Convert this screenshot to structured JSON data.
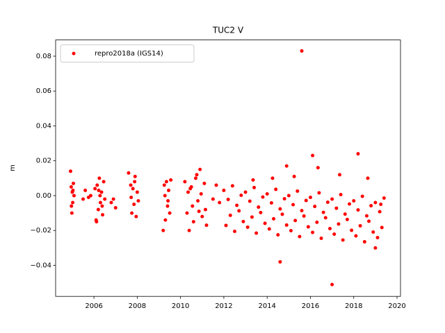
{
  "chart_data": {
    "type": "scatter",
    "title": "TUC2 V",
    "ylabel": "m",
    "legend": "upper left",
    "xlim": [
      2004.23,
      2020.16
    ],
    "ylim": [
      -0.0578,
      0.0893
    ],
    "xticks": [
      2006,
      2008,
      2010,
      2012,
      2014,
      2016,
      2018,
      2020
    ],
    "yticks": [
      {
        "value": -0.04,
        "label": "−0.04"
      },
      {
        "value": -0.02,
        "label": "−0.02"
      },
      {
        "value": 0,
        "label": "0.00"
      },
      0.02,
      0.04,
      0.06,
      0.08
    ],
    "series": [
      {
        "name": "repro2018a (IGS14)",
        "color": "#ff0000",
        "x": [
          2004.92,
          2004.95,
          2004.98,
          2005.0,
          2005.02,
          2005.05,
          2005.08,
          2004.96,
          2005.03,
          2005.5,
          2005.6,
          2005.75,
          2005.85,
          2006.05,
          2006.1,
          2006.15,
          2006.2,
          2006.25,
          2006.3,
          2006.35,
          2006.4,
          2006.45,
          2006.5,
          2006.12,
          2006.28,
          2006.38,
          2006.22,
          2006.8,
          2006.9,
          2007.0,
          2007.6,
          2007.7,
          2007.75,
          2007.8,
          2007.85,
          2007.9,
          2007.95,
          2008.0,
          2008.05,
          2007.72,
          2007.88,
          2009.2,
          2009.25,
          2009.3,
          2009.35,
          2009.4,
          2009.45,
          2009.5,
          2009.55,
          2009.28,
          2009.42,
          2010.2,
          2010.3,
          2010.4,
          2010.5,
          2010.6,
          2010.7,
          2010.8,
          2010.9,
          2011.0,
          2011.1,
          2011.2,
          2010.35,
          2010.55,
          2010.75,
          2010.95,
          2011.15,
          2010.45,
          2010.85,
          2011.5,
          2011.65,
          2011.8,
          2012.0,
          2012.1,
          2012.2,
          2012.3,
          2012.4,
          2012.5,
          2012.6,
          2012.7,
          2012.8,
          2012.9,
          2013.0,
          2013.1,
          2013.2,
          2013.3,
          2013.4,
          2013.5,
          2013.6,
          2013.7,
          2013.8,
          2013.9,
          2014.0,
          2014.1,
          2014.2,
          2014.3,
          2014.4,
          2014.5,
          2014.6,
          2014.7,
          2014.8,
          2014.9,
          2015.0,
          2015.1,
          2015.2,
          2015.3,
          2015.4,
          2015.5,
          2015.6,
          2015.7,
          2015.8,
          2015.9,
          2016.0,
          2016.1,
          2016.2,
          2016.3,
          2016.4,
          2016.5,
          2016.6,
          2016.7,
          2016.8,
          2016.9,
          2017.0,
          2017.1,
          2017.2,
          2017.3,
          2017.4,
          2017.5,
          2017.6,
          2017.7,
          2017.8,
          2017.9,
          2018.0,
          2018.1,
          2018.2,
          2018.3,
          2018.4,
          2018.5,
          2018.6,
          2018.7,
          2018.8,
          2018.9,
          2019.0,
          2019.1,
          2019.2,
          2019.3,
          2019.4,
          2013.35,
          2014.25,
          2015.25,
          2016.35,
          2017.35,
          2018.65,
          2019.25,
          2015.6,
          2014.6,
          2017.0,
          2018.2,
          2016.1,
          2014.9,
          2019.0
        ],
        "values": [
          0.014,
          0.005,
          -0.01,
          0.002,
          -0.004,
          0.007,
          0.0,
          -0.006,
          0.003,
          -0.002,
          0.003,
          -0.001,
          0.0,
          0.004,
          -0.014,
          0.006,
          -0.008,
          0.01,
          -0.004,
          0.002,
          -0.011,
          0.008,
          -0.002,
          -0.015,
          0.0,
          -0.006,
          0.003,
          -0.004,
          -0.002,
          -0.007,
          0.013,
          0.006,
          -0.01,
          0.004,
          -0.005,
          0.011,
          -0.012,
          0.002,
          -0.003,
          -0.001,
          0.008,
          -0.02,
          0.006,
          -0.014,
          0.008,
          -0.006,
          0.003,
          -0.01,
          0.009,
          0.0,
          -0.003,
          0.008,
          -0.01,
          -0.02,
          0.005,
          -0.015,
          0.01,
          -0.003,
          0.015,
          -0.012,
          0.007,
          -0.017,
          0.002,
          -0.006,
          0.012,
          0.001,
          -0.008,
          0.004,
          -0.009,
          -0.002,
          0.006,
          -0.004,
          0.003,
          -0.0171,
          -0.0022,
          -0.0113,
          0.0056,
          -0.0205,
          -0.0056,
          -0.0087,
          0.0002,
          -0.0149,
          0.002,
          -0.0181,
          -0.0032,
          -0.0123,
          0.0046,
          -0.0215,
          -0.0066,
          -0.0097,
          -0.0008,
          -0.0159,
          0.001,
          -0.0191,
          -0.0042,
          -0.0133,
          0.0036,
          -0.0225,
          -0.0076,
          -0.0107,
          -0.0018,
          -0.0169,
          0,
          -0.0201,
          -0.0052,
          -0.0143,
          0.0026,
          -0.0235,
          -0.0086,
          -0.0117,
          -0.0028,
          -0.0179,
          -0.001,
          -0.0211,
          -0.0062,
          -0.0153,
          0.0016,
          -0.0245,
          -0.0096,
          -0.0127,
          -0.0038,
          -0.0189,
          -0.002,
          -0.0221,
          -0.0072,
          -0.0163,
          0.0006,
          -0.0255,
          -0.0106,
          -0.0137,
          -0.0048,
          -0.0199,
          -0.003,
          -0.0231,
          -0.0082,
          -0.0173,
          -0.0004,
          -0.0265,
          -0.0116,
          -0.0147,
          -0.0058,
          -0.0209,
          -0.004,
          -0.0241,
          -0.0092,
          -0.0183,
          -0.0014,
          0.009,
          0.01,
          0.011,
          0.016,
          0.012,
          0.01,
          -0.005,
          0.083,
          -0.038,
          -0.051,
          0.024,
          0.023,
          0.017,
          -0.03
        ]
      }
    ]
  }
}
